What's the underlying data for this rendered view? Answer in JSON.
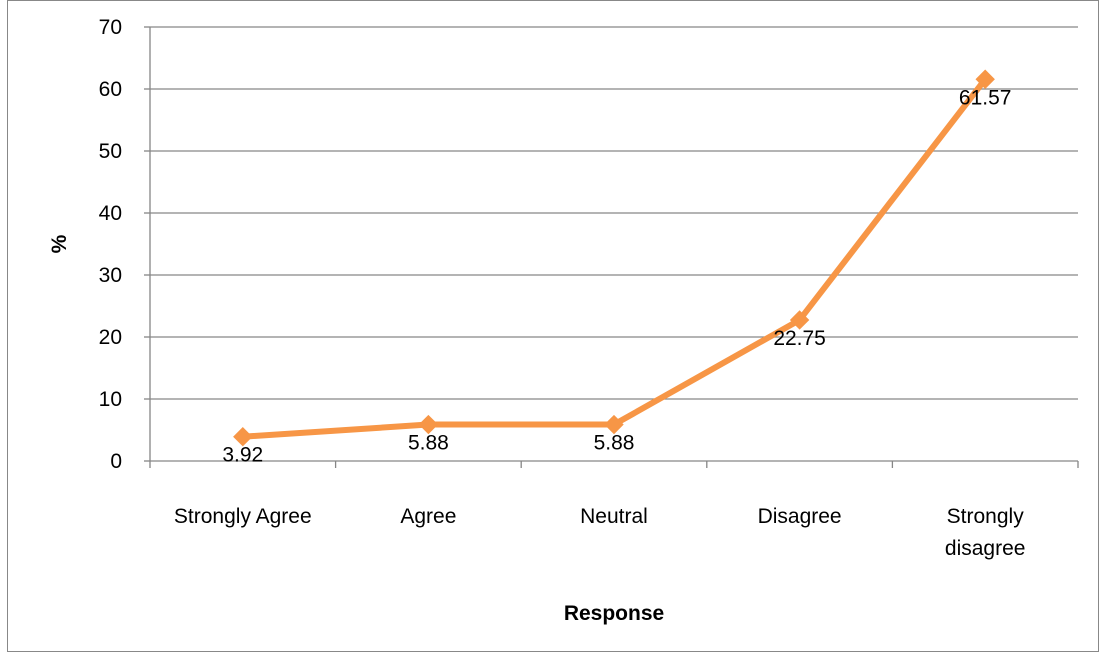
{
  "chart_data": {
    "type": "line",
    "title": "",
    "xlabel": "Response",
    "ylabel": "%",
    "ylim": [
      0,
      70
    ],
    "yticks": [
      0,
      10,
      20,
      30,
      40,
      50,
      60,
      70
    ],
    "grid": true,
    "legend": "none",
    "categories": [
      [
        "Strongly Agree"
      ],
      [
        "Agree"
      ],
      [
        "Neutral"
      ],
      [
        "Disagree"
      ],
      [
        "Strongly",
        "disagree"
      ]
    ],
    "series": [
      {
        "values": [
          3.92,
          5.88,
          5.88,
          22.75,
          61.57
        ],
        "labels": [
          "3.92",
          "5.88",
          "5.88",
          "22.75",
          "61.57"
        ],
        "color": "#f79646",
        "marker": "diamond"
      }
    ]
  }
}
